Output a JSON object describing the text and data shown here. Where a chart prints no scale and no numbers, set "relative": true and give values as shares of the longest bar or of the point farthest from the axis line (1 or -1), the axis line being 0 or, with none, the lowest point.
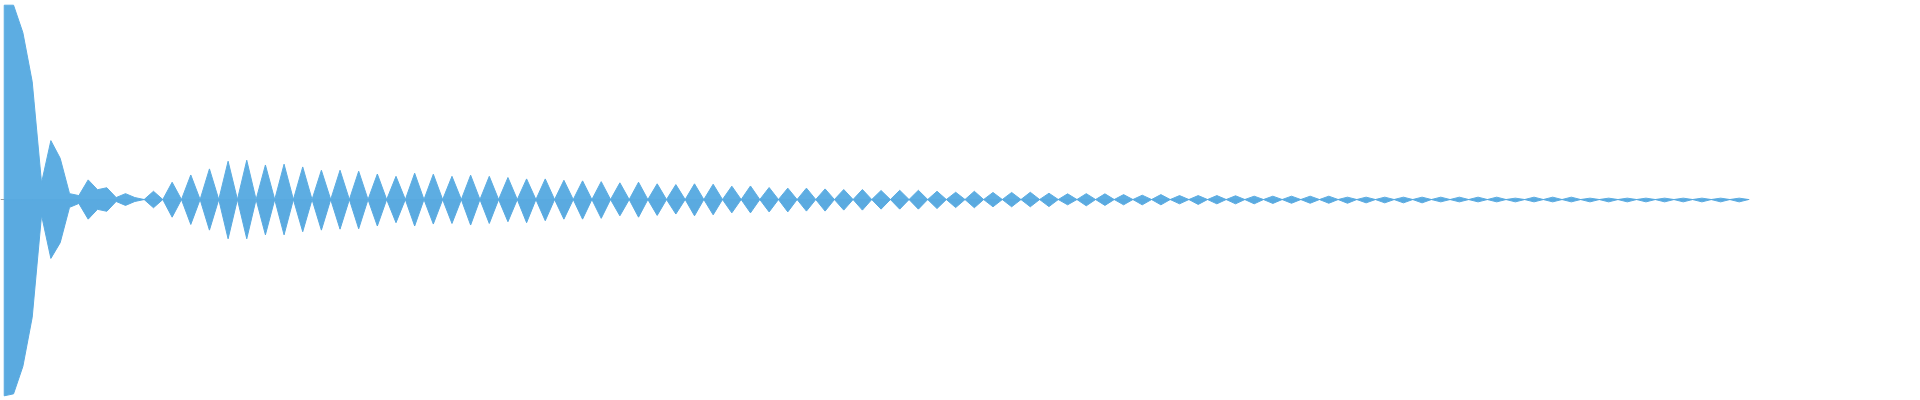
{
  "chart_data": {
    "type": "area",
    "relative": true,
    "categories": [
      null,
      null,
      null,
      null,
      null,
      null,
      null,
      null,
      null,
      null,
      null,
      null,
      null,
      null,
      null,
      null,
      null,
      null,
      null,
      null,
      null,
      null,
      null,
      null,
      null,
      null,
      null,
      null,
      null,
      null,
      null,
      null,
      null,
      null,
      null,
      null,
      null,
      null,
      null,
      null,
      null,
      null,
      null,
      null,
      null,
      null,
      null,
      null,
      null,
      null,
      null,
      null,
      null,
      null,
      null,
      null,
      null,
      null,
      null,
      null,
      null,
      null,
      null,
      null,
      null,
      null,
      null,
      null,
      null,
      null,
      null,
      null,
      null,
      null,
      null,
      null,
      null,
      null,
      null,
      null,
      null,
      null,
      null,
      null,
      null,
      null,
      null,
      null,
      null,
      null,
      null,
      null,
      null,
      null,
      null,
      null,
      null,
      null,
      null,
      null,
      null,
      null,
      null,
      null,
      null,
      null,
      null,
      null,
      null,
      null,
      null,
      null,
      null,
      null,
      null,
      null,
      null,
      null,
      null,
      null,
      null,
      null,
      null,
      null,
      null,
      null,
      null,
      null,
      null,
      null,
      null,
      null,
      null,
      null,
      null,
      null,
      null,
      null,
      null,
      null,
      null,
      null,
      null,
      null,
      null,
      null,
      null,
      null,
      null,
      null,
      null,
      null,
      null,
      null,
      null,
      null,
      null,
      null,
      null,
      null,
      null,
      null,
      null,
      null,
      null,
      null,
      null,
      null,
      null,
      null,
      null,
      null,
      null,
      null,
      null,
      null,
      null,
      null,
      null,
      null,
      null,
      null,
      null,
      null,
      null,
      null,
      null,
      null
    ],
    "series": [
      {
        "color": "#5dade2",
        "values": [
          0.99,
          0.99,
          0.85,
          0.6,
          0.085,
          0.3,
          0.21,
          0.03,
          0.02,
          0.1,
          0.05,
          0.06,
          0.01,
          0.03,
          0.01,
          0,
          0.042,
          0,
          0.088,
          0,
          0.125,
          0,
          0.156,
          0,
          0.195,
          0,
          0.2,
          0,
          0.176,
          0,
          0.18,
          0,
          0.166,
          0,
          0.149,
          0,
          0.149,
          0,
          0.144,
          0,
          0.13,
          0,
          0.118,
          0,
          0.134,
          0,
          0.129,
          0,
          0.118,
          0,
          0.124,
          0,
          0.118,
          0,
          0.112,
          0,
          0.105,
          0,
          0.105,
          0,
          0.098,
          0,
          0.095,
          0,
          0.091,
          0,
          0.085,
          0,
          0.088,
          0,
          0.08,
          0,
          0.076,
          0,
          0.08,
          0,
          0.078,
          0,
          0.068,
          0,
          0.069,
          0,
          0.061,
          0,
          0.058,
          0,
          0.058,
          0,
          0.054,
          0,
          0.051,
          0,
          0.051,
          0,
          0.046,
          0,
          0.047,
          0,
          0.047,
          0,
          0.042,
          0,
          0.037,
          0,
          0.042,
          0,
          0.036,
          0,
          0.036,
          0,
          0.037,
          0,
          0.032,
          0,
          0.029,
          0,
          0.03,
          0,
          0.029,
          0,
          0.025,
          0,
          0.022,
          0,
          0.025,
          0,
          0.02,
          0,
          0.02,
          0,
          0.02,
          0,
          0.019,
          0,
          0.017,
          0,
          0.017,
          0,
          0.017,
          0,
          0.017,
          0,
          0.017,
          0,
          0.012,
          0,
          0.012,
          0,
          0.012,
          0,
          0.012,
          0,
          0.012,
          0,
          0.012,
          0,
          0.012,
          0,
          0.012,
          0,
          0.012,
          0,
          0.007,
          0,
          0.012,
          0,
          0.012,
          0,
          0.012,
          0,
          0.007,
          0,
          0.007,
          0,
          0.007,
          0,
          0.007,
          0,
          0.007,
          0,
          0.007,
          0,
          0.007,
          0,
          0.007,
          0,
          0.007,
          0
        ]
      },
      {
        "color": "#5aaae0",
        "values": [
          -1.0,
          -0.99,
          -0.85,
          -0.6,
          -0.08,
          -0.3,
          -0.22,
          -0.04,
          -0.02,
          -0.1,
          -0.05,
          -0.06,
          -0.01,
          -0.03,
          -0.01,
          0,
          -0.042,
          0,
          -0.09,
          0,
          -0.127,
          0,
          -0.156,
          0,
          -0.2,
          0,
          -0.2,
          0,
          -0.18,
          0,
          -0.18,
          0,
          -0.164,
          0,
          -0.156,
          0,
          -0.151,
          0,
          -0.149,
          0,
          -0.135,
          0,
          -0.118,
          0,
          -0.135,
          0,
          -0.125,
          0,
          -0.122,
          0,
          -0.13,
          0,
          -0.122,
          0,
          -0.113,
          0,
          -0.118,
          0,
          -0.108,
          0,
          -0.1,
          0,
          -0.1,
          0,
          -0.096,
          0,
          -0.083,
          0,
          -0.09,
          0,
          -0.081,
          0,
          -0.074,
          0,
          -0.083,
          0,
          -0.078,
          0,
          -0.068,
          0,
          -0.068,
          0,
          -0.063,
          0,
          -0.063,
          0,
          -0.059,
          0,
          -0.059,
          0,
          -0.054,
          0,
          -0.054,
          0,
          -0.049,
          0,
          -0.049,
          0,
          -0.049,
          0,
          -0.046,
          0,
          -0.041,
          0,
          -0.042,
          0,
          -0.037,
          0,
          -0.037,
          0,
          -0.037,
          0,
          -0.036,
          0,
          -0.027,
          0,
          -0.032,
          0,
          -0.03,
          0,
          -0.027,
          0,
          -0.027,
          0,
          -0.027,
          0,
          -0.022,
          0,
          -0.025,
          0,
          -0.022,
          0,
          -0.022,
          0,
          -0.022,
          0,
          -0.02,
          0,
          -0.019,
          0,
          -0.019,
          0,
          -0.019,
          0,
          -0.019,
          0,
          -0.017,
          0,
          -0.017,
          0,
          -0.017,
          0,
          -0.017,
          0,
          -0.012,
          0,
          -0.012,
          0,
          -0.012,
          0,
          -0.012,
          0,
          -0.012,
          0,
          -0.012,
          0,
          -0.012,
          0,
          -0.012,
          0,
          -0.012,
          0,
          -0.012,
          0,
          -0.012,
          0,
          -0.012,
          0,
          -0.012,
          0,
          -0.012,
          0,
          -0.012,
          0,
          -0.012,
          0,
          -0.012,
          0
        ]
      }
    ]
  }
}
